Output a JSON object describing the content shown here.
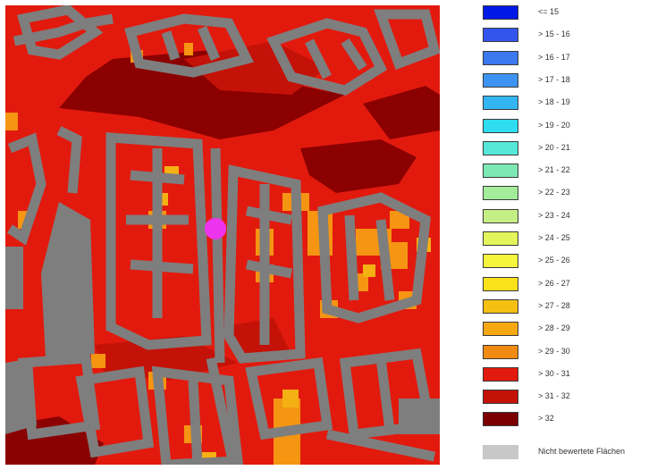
{
  "map": {
    "name": "temperature-map",
    "marker_color": "#ee33ee",
    "colors": {
      "red": "#e21a0e",
      "dark_red": "#8b0000",
      "crimson": "#c41208",
      "orange": "#f59512",
      "light_orange": "#f5b014",
      "gray": "#7e7e7e"
    }
  },
  "legend": {
    "items": [
      {
        "label": "<= 15",
        "color": "#0019e6"
      },
      {
        "label": "> 15 - 16",
        "color": "#3355ee"
      },
      {
        "label": "> 16 - 17",
        "color": "#3c78f0"
      },
      {
        "label": "> 17 - 18",
        "color": "#3d93f2"
      },
      {
        "label": "> 18 - 19",
        "color": "#33b5f2"
      },
      {
        "label": "> 19 - 20",
        "color": "#2fdcf0"
      },
      {
        "label": "> 20 - 21",
        "color": "#55e8d8"
      },
      {
        "label": "> 21 - 22",
        "color": "#7de8b4"
      },
      {
        "label": "> 22 - 23",
        "color": "#a3ec9a"
      },
      {
        "label": "> 23 - 24",
        "color": "#c4ef84"
      },
      {
        "label": "> 24 - 25",
        "color": "#e3f55a"
      },
      {
        "label": "> 25 - 26",
        "color": "#f5f53d"
      },
      {
        "label": "> 26 - 27",
        "color": "#f9e21a"
      },
      {
        "label": "> 27 - 28",
        "color": "#f5c012"
      },
      {
        "label": "> 28 - 29",
        "color": "#f5a812"
      },
      {
        "label": "> 29 - 30",
        "color": "#f08a10"
      },
      {
        "label": "> 30 - 31",
        "color": "#e21a0e"
      },
      {
        "label": "> 31 - 32",
        "color": "#c41208"
      },
      {
        "label": "> 32",
        "color": "#7a0000"
      }
    ],
    "not_rated": {
      "label": "Nicht bewertete Flächen",
      "color": "#c8c8c8"
    }
  }
}
